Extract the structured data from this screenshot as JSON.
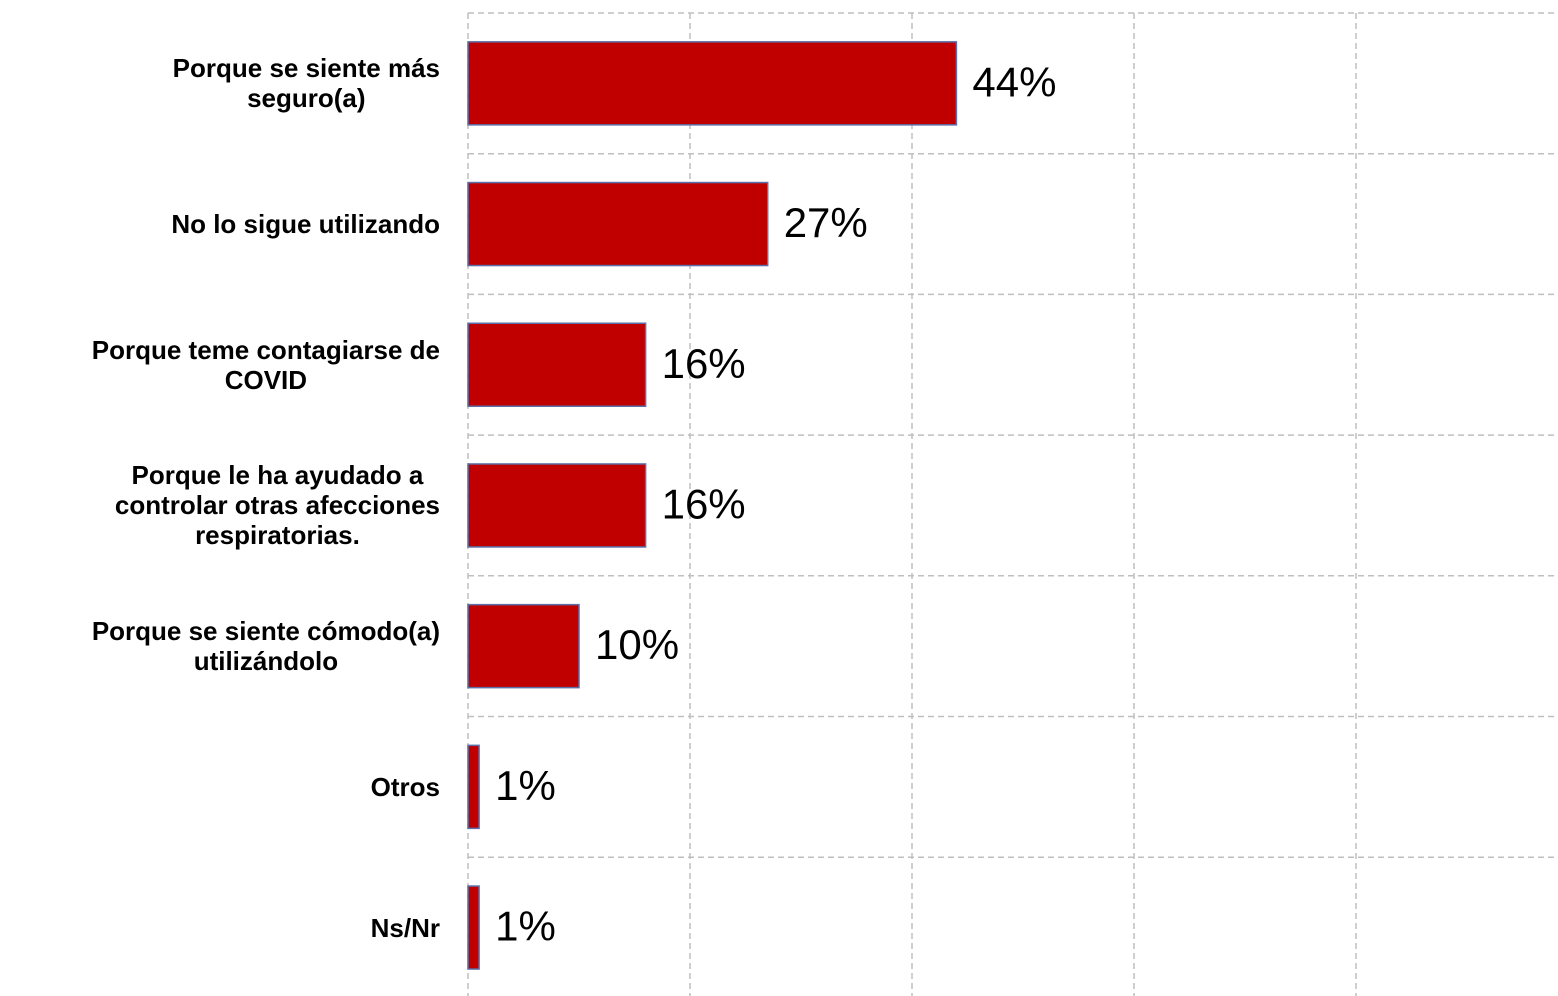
{
  "chart_data": {
    "type": "hbar",
    "categories": [
      "Porque se siente más\nseguro(a)",
      "No lo sigue utilizando",
      "Porque teme contagiarse de\nCOVID",
      "Porque le ha ayudado a\ncontrolar otras afecciones\nrespiratorias.",
      "Porque se siente cómodo(a)\nutilizándolo",
      "Otros",
      "Ns/Nr"
    ],
    "values": [
      44,
      27,
      16,
      16,
      10,
      1,
      1
    ],
    "value_labels": [
      "44%",
      "27%",
      "16%",
      "16%",
      "10%",
      "1%",
      "1%"
    ],
    "color": "#c00000",
    "xlim": [
      0,
      100
    ],
    "xticks": [
      0,
      20,
      40,
      60,
      80
    ],
    "grid": true
  }
}
